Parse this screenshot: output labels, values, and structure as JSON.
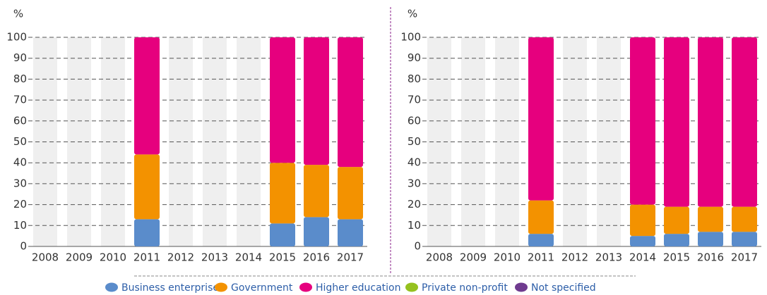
{
  "chart_data": [
    {
      "type": "stacked_bar",
      "y_label": "%",
      "categories": [
        "2008",
        "2009",
        "2010",
        "2011",
        "2012",
        "2013",
        "2014",
        "2015",
        "2016",
        "2017"
      ],
      "series": [
        {
          "name": "Business enterprise",
          "color": "#5a8ccb",
          "values": [
            null,
            null,
            null,
            13,
            null,
            null,
            null,
            11,
            14,
            13
          ]
        },
        {
          "name": "Government",
          "color": "#f39200",
          "values": [
            null,
            null,
            null,
            31,
            null,
            null,
            null,
            29,
            25,
            25
          ]
        },
        {
          "name": "Higher education",
          "color": "#e6007e",
          "values": [
            null,
            null,
            null,
            56,
            null,
            null,
            null,
            60,
            61,
            62
          ]
        },
        {
          "name": "Private non-profit",
          "color": "#95c11f",
          "values": [
            null,
            null,
            null,
            0,
            null,
            null,
            null,
            0,
            0,
            0
          ]
        },
        {
          "name": "Not specified",
          "color": "#6f3b8f",
          "values": [
            null,
            null,
            null,
            0,
            null,
            null,
            null,
            0,
            0,
            0
          ]
        }
      ],
      "ylim": [
        0,
        100
      ],
      "yticks": [
        0,
        10,
        20,
        30,
        40,
        50,
        60,
        70,
        80,
        90,
        100
      ],
      "grid": true
    },
    {
      "type": "stacked_bar",
      "y_label": "%",
      "categories": [
        "2008",
        "2009",
        "2010",
        "2011",
        "2012",
        "2013",
        "2014",
        "2015",
        "2016",
        "2017"
      ],
      "series": [
        {
          "name": "Business enterprise",
          "color": "#5a8ccb",
          "values": [
            null,
            null,
            null,
            6,
            null,
            null,
            5,
            6,
            7,
            7
          ]
        },
        {
          "name": "Government",
          "color": "#f39200",
          "values": [
            null,
            null,
            null,
            16,
            null,
            null,
            15,
            13,
            12,
            12
          ]
        },
        {
          "name": "Higher education",
          "color": "#e6007e",
          "values": [
            null,
            null,
            null,
            78,
            null,
            null,
            80,
            81,
            81,
            81
          ]
        },
        {
          "name": "Private non-profit",
          "color": "#95c11f",
          "values": [
            null,
            null,
            null,
            0,
            null,
            null,
            0,
            0,
            0,
            0
          ]
        },
        {
          "name": "Not specified",
          "color": "#6f3b8f",
          "values": [
            null,
            null,
            null,
            0,
            null,
            null,
            0,
            0,
            0,
            0
          ]
        }
      ],
      "ylim": [
        0,
        100
      ],
      "yticks": [
        0,
        10,
        20,
        30,
        40,
        50,
        60,
        70,
        80,
        90,
        100
      ],
      "grid": true
    }
  ]
}
